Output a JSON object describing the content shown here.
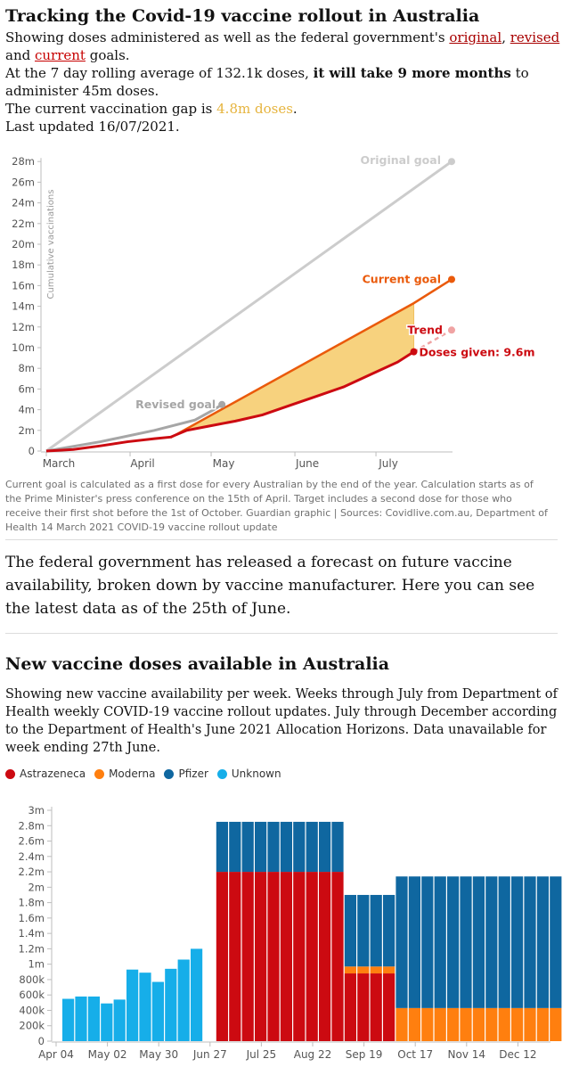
{
  "header": {
    "title": "Tracking the Covid-19 vaccine rollout in Australia",
    "sub_prefix": "Showing doses administered as well as the federal government's ",
    "original": "original",
    "comma": ", ",
    "revised": "revised",
    "and": " and ",
    "current": "current",
    "goals": " goals.",
    "line2_prefix": "At the 7 day rolling average of 132.1k doses, ",
    "line2_bold": "it will take 9 more months",
    "line2_suffix": " to administer 45m doses.",
    "line3_prefix": "The current vaccination gap is ",
    "line3_gap": "4.8m doses",
    "line3_suffix": ".",
    "updated": "Last updated 16/07/2021."
  },
  "colors": {
    "original": "#cccccc",
    "revised": "#a6a6a6",
    "current": "#ea5a0b",
    "doses": "#cc0a11",
    "trend": "#f0a3a3",
    "gap_fill": "#f7d27e",
    "astrazeneca": "#cc0a11",
    "moderna": "#ff7f0f",
    "pfizer": "#0f67a0",
    "unknown": "#16aee9"
  },
  "chart_data": [
    {
      "type": "line",
      "ylabel": "Cumulative vaccinations",
      "y_ticks": [
        "0",
        "2m",
        "4m",
        "6m",
        "8m",
        "10m",
        "12m",
        "14m",
        "16m",
        "18m",
        "20m",
        "22m",
        "24m",
        "26m",
        "28m"
      ],
      "x_ticks": [
        "March",
        "April",
        "May",
        "June",
        "July"
      ],
      "ylim": [
        0,
        29
      ],
      "series": [
        {
          "name": "Original goal",
          "label": "Original goal",
          "points": [
            [
              0,
              0
            ],
            [
              150,
              28
            ]
          ]
        },
        {
          "name": "Revised goal",
          "label": "Revised goal",
          "points": [
            [
              0,
              0
            ],
            [
              20,
              0.9
            ],
            [
              40,
              2.0
            ],
            [
              55,
              3.0
            ],
            [
              62,
              4.0
            ],
            [
              65,
              4.5
            ]
          ]
        },
        {
          "name": "Current goal",
          "label": "Current goal",
          "points": [
            [
              46,
              1.3
            ],
            [
              136,
              14.3
            ],
            [
              150,
              16.6
            ]
          ]
        },
        {
          "name": "Doses given",
          "label": "Doses given: 9.6m",
          "points": [
            [
              0,
              0
            ],
            [
              10,
              0.15
            ],
            [
              20,
              0.5
            ],
            [
              30,
              0.9
            ],
            [
              40,
              1.2
            ],
            [
              46,
              1.35
            ],
            [
              52,
              2.0
            ],
            [
              60,
              2.4
            ],
            [
              70,
              2.9
            ],
            [
              80,
              3.5
            ],
            [
              90,
              4.4
            ],
            [
              100,
              5.3
            ],
            [
              110,
              6.2
            ],
            [
              120,
              7.4
            ],
            [
              130,
              8.6
            ],
            [
              136,
              9.6
            ]
          ]
        },
        {
          "name": "Trend",
          "label": "Trend",
          "points": [
            [
              136,
              9.6
            ],
            [
              150,
              11.7
            ]
          ]
        }
      ]
    },
    {
      "type": "bar",
      "stacked": true,
      "title": "New vaccine doses available in Australia",
      "y_ticks": [
        "0",
        "200k",
        "400k",
        "600k",
        "800k",
        "1m",
        "1.2m",
        "1.4m",
        "1.6m",
        "1.8m",
        "2m",
        "2.2m",
        "2.4m",
        "2.6m",
        "2.8m",
        "3m"
      ],
      "ylim": [
        0,
        3000000
      ],
      "x_ticks": [
        "Apr 04",
        "May 02",
        "May 30",
        "Jun 27",
        "Jul 25",
        "Aug 22",
        "Sep 19",
        "Oct 17",
        "Nov 14",
        "Dec 12"
      ],
      "series_names": [
        "Astrazeneca",
        "Moderna",
        "Pfizer",
        "Unknown"
      ],
      "weeks": [
        {
          "unknown": 550000
        },
        {
          "unknown": 580000
        },
        {
          "unknown": 580000
        },
        {
          "unknown": 490000
        },
        {
          "unknown": 540000
        },
        {
          "unknown": 930000
        },
        {
          "unknown": 890000
        },
        {
          "unknown": 770000
        },
        {
          "unknown": 940000
        },
        {
          "unknown": 1060000
        },
        {
          "unknown": 1200000
        },
        {},
        {
          "astrazeneca": 2200000,
          "pfizer": 650000
        },
        {
          "astrazeneca": 2200000,
          "pfizer": 650000
        },
        {
          "astrazeneca": 2200000,
          "pfizer": 650000
        },
        {
          "astrazeneca": 2200000,
          "pfizer": 650000
        },
        {
          "astrazeneca": 2200000,
          "pfizer": 650000
        },
        {
          "astrazeneca": 2200000,
          "pfizer": 650000
        },
        {
          "astrazeneca": 2200000,
          "pfizer": 650000
        },
        {
          "astrazeneca": 2200000,
          "pfizer": 650000
        },
        {
          "astrazeneca": 2200000,
          "pfizer": 650000
        },
        {
          "astrazeneca": 2200000,
          "pfizer": 650000
        },
        {
          "astrazeneca": 880000,
          "moderna": 90000,
          "pfizer": 930000
        },
        {
          "astrazeneca": 880000,
          "moderna": 90000,
          "pfizer": 930000
        },
        {
          "astrazeneca": 880000,
          "moderna": 90000,
          "pfizer": 930000
        },
        {
          "astrazeneca": 880000,
          "moderna": 90000,
          "pfizer": 930000
        },
        {
          "moderna": 430000,
          "pfizer": 1710000
        },
        {
          "moderna": 430000,
          "pfizer": 1710000
        },
        {
          "moderna": 430000,
          "pfizer": 1710000
        },
        {
          "moderna": 430000,
          "pfizer": 1710000
        },
        {
          "moderna": 430000,
          "pfizer": 1710000
        },
        {
          "moderna": 430000,
          "pfizer": 1710000
        },
        {
          "moderna": 430000,
          "pfizer": 1710000
        },
        {
          "moderna": 430000,
          "pfizer": 1710000
        },
        {
          "moderna": 430000,
          "pfizer": 1710000
        },
        {
          "moderna": 430000,
          "pfizer": 1710000
        },
        {
          "moderna": 430000,
          "pfizer": 1710000
        },
        {
          "moderna": 430000,
          "pfizer": 1710000
        },
        {
          "moderna": 430000,
          "pfizer": 1710000
        }
      ]
    }
  ],
  "note": "Current goal is calculated as a first dose for every Australian by the end of the year. Calculation starts as of the Prime Minister's press conference on the 15th of April. Target includes a second dose for those who receive their first shot before the 1st of October. Guardian graphic | Sources: Covidlive.com.au, Department of Health 14 March 2021 COVID-19 vaccine rollout update",
  "paragraph": "The federal government has released a forecast on future vaccine availability, broken down by vaccine manufacturer. Here you can see the latest data as of the 25th of June.",
  "section2": {
    "title": "New vaccine doses available in Australia",
    "subtitle": "Showing new vaccine availability per week. Weeks through July from Department of Health weekly COVID-19 vaccine rollout updates. July through December according to the Department of Health's June 2021 Allocation Horizons. Data unavailable for week ending 27th June.",
    "legend": [
      {
        "label": "Astrazeneca",
        "color_key": "astrazeneca"
      },
      {
        "label": "Moderna",
        "color_key": "moderna"
      },
      {
        "label": "Pfizer",
        "color_key": "pfizer"
      },
      {
        "label": "Unknown",
        "color_key": "unknown"
      }
    ]
  }
}
